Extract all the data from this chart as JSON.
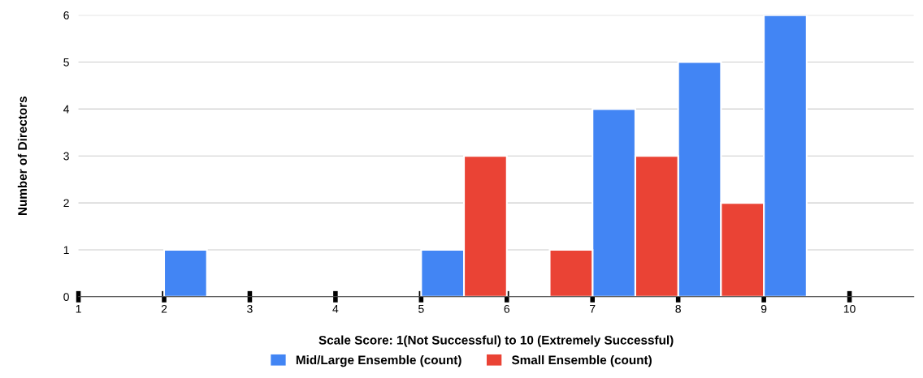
{
  "chart_data": {
    "type": "histogram",
    "xlabel": "Scale Score: 1(Not Successful) to 10 (Extremely Successful)",
    "ylabel": "Number of Directors",
    "bins": [
      1,
      1.5,
      2,
      2.5,
      3,
      3.5,
      4,
      4.5,
      5,
      5.5,
      6,
      6.5,
      7,
      7.5,
      8,
      8.5,
      9,
      9.5,
      10
    ],
    "series": [
      {
        "name": "Mid/Large Ensemble (count)",
        "color": "#4285f4",
        "values": [
          null,
          null,
          1,
          null,
          null,
          null,
          null,
          null,
          1,
          null,
          null,
          null,
          4,
          null,
          5,
          null,
          6,
          null
        ]
      },
      {
        "name": "Small Ensemble (count)",
        "color": "#ea4335",
        "values": [
          null,
          null,
          null,
          null,
          null,
          null,
          null,
          null,
          null,
          3,
          null,
          1,
          null,
          3,
          null,
          2,
          null,
          null
        ]
      }
    ],
    "xlim": [
      1,
      10.75
    ],
    "xticks": [
      1,
      2,
      3,
      4,
      5,
      6,
      7,
      8,
      9,
      10
    ],
    "ylim": [
      0,
      6
    ],
    "yticks": [
      0,
      1,
      2,
      3,
      4,
      5,
      6
    ],
    "grid": "y",
    "legend": "bottom"
  }
}
